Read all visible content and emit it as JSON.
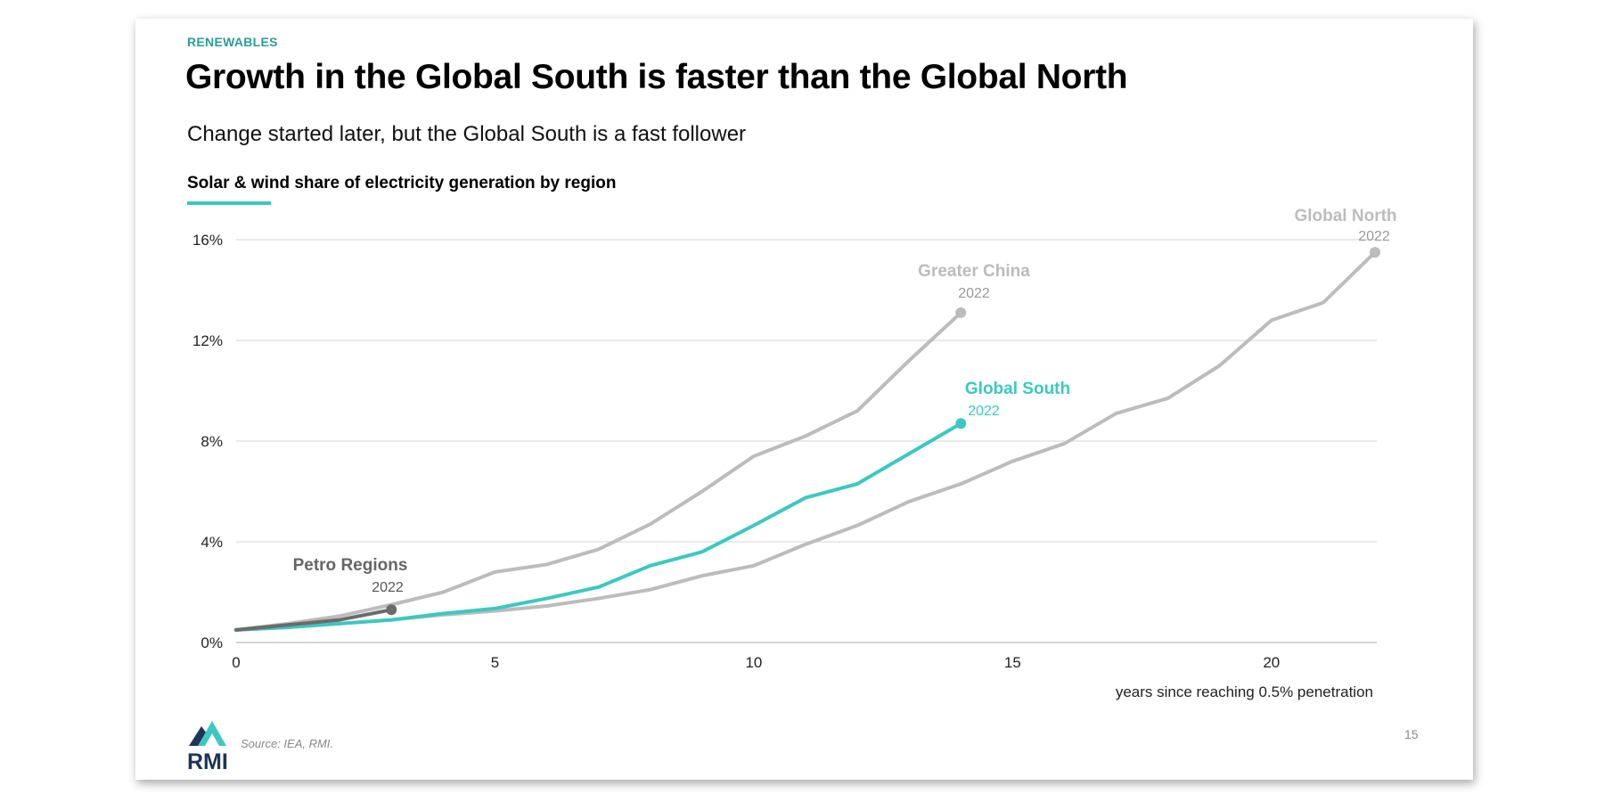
{
  "slide": {
    "kicker": "RENEWABLES",
    "title": "Growth in the Global South is faster than the Global North",
    "subtitle": "Change started later, but the Global South is a fast follower",
    "source": "Source: IEA, RMI.",
    "page_number": "15",
    "logo_text": "RMI"
  },
  "colors": {
    "accent": "#3cc8c0",
    "kicker": "#2a9d96",
    "gray_series": "#bcbcbc",
    "petro": "#6b6b6b",
    "grid": "#dddddd"
  },
  "chart_data": {
    "type": "line",
    "title": "Solar & wind share of electricity generation by region",
    "xlabel": "years since reaching 0.5% penetration",
    "ylabel": "",
    "xlim": [
      0,
      22
    ],
    "ylim": [
      0,
      16
    ],
    "xticks": [
      "0",
      "5",
      "10",
      "15",
      "20"
    ],
    "yticks": [
      "0%",
      "4%",
      "8%",
      "12%",
      "16%"
    ],
    "grid": "horizontal",
    "series": [
      {
        "name": "Global North",
        "end_label": "2022",
        "color": "#bcbcbc",
        "x": [
          0,
          1,
          2,
          3,
          4,
          5,
          6,
          7,
          8,
          9,
          10,
          11,
          12,
          13,
          14,
          15,
          16,
          17,
          18,
          19,
          20,
          21,
          22
        ],
        "y": [
          0.5,
          0.6,
          0.75,
          0.9,
          1.1,
          1.25,
          1.45,
          1.75,
          2.1,
          2.65,
          3.05,
          3.9,
          4.65,
          5.6,
          6.3,
          7.2,
          7.9,
          9.1,
          9.7,
          11.0,
          12.8,
          13.5,
          15.5
        ]
      },
      {
        "name": "Greater China",
        "end_label": "2022",
        "color": "#bcbcbc",
        "x": [
          0,
          1,
          2,
          3,
          4,
          5,
          6,
          7,
          8,
          9,
          10,
          11,
          12,
          13,
          14
        ],
        "y": [
          0.5,
          0.75,
          1.05,
          1.5,
          2.0,
          2.8,
          3.1,
          3.7,
          4.7,
          6.0,
          7.4,
          8.2,
          9.2,
          11.2,
          13.1
        ]
      },
      {
        "name": "Global South",
        "end_label": "2022",
        "color": "#3cc8c0",
        "x": [
          0,
          1,
          2,
          3,
          4,
          5,
          6,
          7,
          8,
          9,
          10,
          11,
          12,
          13,
          14
        ],
        "y": [
          0.5,
          0.6,
          0.75,
          0.9,
          1.15,
          1.35,
          1.75,
          2.2,
          3.05,
          3.6,
          4.65,
          5.75,
          6.3,
          7.5,
          8.7
        ]
      },
      {
        "name": "Petro Regions",
        "end_label": "2022",
        "color": "#6b6b6b",
        "x": [
          0,
          1,
          2,
          3
        ],
        "y": [
          0.5,
          0.7,
          0.9,
          1.3
        ]
      }
    ]
  }
}
